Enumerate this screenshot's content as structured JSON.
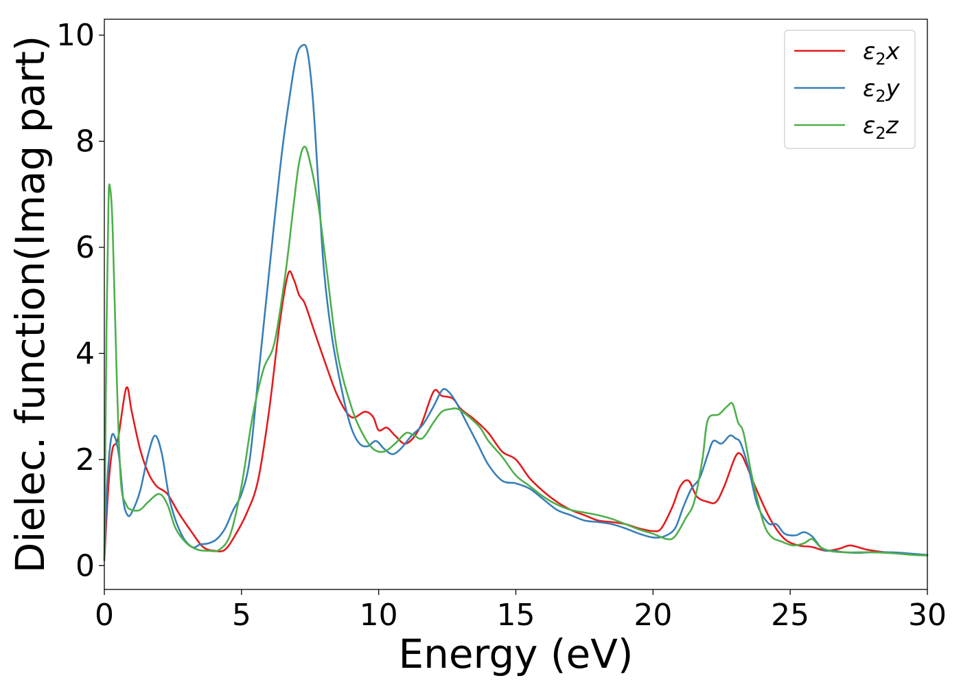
{
  "chart_data": {
    "type": "line",
    "title": "",
    "xlabel": "Energy (eV)",
    "ylabel": "Dielec. function(Imag part)",
    "xlim": [
      0,
      30
    ],
    "ylim": [
      -0.45,
      10.3
    ],
    "xticks": [
      0,
      5,
      10,
      15,
      20,
      25,
      30
    ],
    "yticks": [
      0,
      2,
      4,
      6,
      8,
      10
    ],
    "grid": false,
    "legend_position": "top-right",
    "series": [
      {
        "name": "ε₂x",
        "legend_base": "ε",
        "legend_sub": "2",
        "legend_suffix": "x",
        "color": "#e41a1c",
        "x": [
          0,
          0.15,
          0.3,
          0.5,
          0.8,
          1.0,
          1.3,
          1.6,
          1.9,
          2.3,
          2.7,
          3.2,
          3.6,
          4.0,
          4.4,
          4.8,
          5.2,
          5.6,
          6.0,
          6.4,
          6.7,
          6.9,
          7.1,
          7.3,
          7.6,
          8.0,
          8.5,
          9.0,
          9.5,
          9.8,
          10.0,
          10.3,
          10.6,
          11.0,
          11.5,
          12.0,
          12.3,
          12.7,
          13.0,
          13.5,
          14.0,
          14.5,
          15.0,
          15.5,
          16.0,
          16.5,
          17.0,
          17.5,
          18.0,
          18.5,
          19.0,
          19.5,
          20.0,
          20.3,
          20.7,
          21.0,
          21.3,
          21.6,
          22.0,
          22.3,
          22.6,
          23.0,
          23.2,
          23.4,
          23.8,
          24.3,
          24.8,
          25.3,
          25.8,
          26.3,
          26.8,
          27.2,
          27.8,
          28.5,
          29.2,
          30.0
        ],
        "values": [
          0.1,
          1.5,
          2.2,
          2.4,
          3.35,
          2.9,
          2.2,
          1.75,
          1.5,
          1.35,
          1.0,
          0.62,
          0.35,
          0.28,
          0.3,
          0.6,
          1.0,
          1.6,
          2.9,
          4.6,
          5.5,
          5.4,
          5.1,
          4.95,
          4.5,
          3.9,
          3.2,
          2.8,
          2.9,
          2.8,
          2.55,
          2.6,
          2.45,
          2.3,
          2.6,
          3.28,
          3.2,
          3.15,
          2.95,
          2.75,
          2.5,
          2.15,
          2.0,
          1.65,
          1.4,
          1.2,
          1.05,
          0.95,
          0.85,
          0.82,
          0.78,
          0.7,
          0.65,
          0.7,
          1.1,
          1.5,
          1.6,
          1.3,
          1.2,
          1.2,
          1.5,
          2.05,
          2.1,
          1.9,
          1.4,
          0.85,
          0.5,
          0.38,
          0.35,
          0.28,
          0.32,
          0.38,
          0.3,
          0.25,
          0.22,
          0.2
        ]
      },
      {
        "name": "ε₂y",
        "legend_base": "ε",
        "legend_sub": "2",
        "legend_suffix": "y",
        "color": "#377eb8",
        "x": [
          0,
          0.1,
          0.25,
          0.4,
          0.55,
          0.7,
          0.85,
          1.0,
          1.3,
          1.6,
          1.85,
          2.1,
          2.4,
          2.8,
          3.2,
          3.5,
          3.8,
          4.1,
          4.4,
          4.7,
          5.0,
          5.3,
          5.6,
          5.9,
          6.2,
          6.5,
          6.8,
          7.0,
          7.2,
          7.4,
          7.6,
          7.8,
          8.0,
          8.3,
          8.7,
          9.0,
          9.3,
          9.6,
          9.9,
          10.2,
          10.5,
          10.8,
          11.2,
          11.6,
          12.0,
          12.3,
          12.5,
          12.8,
          13.2,
          13.6,
          14.0,
          14.5,
          15.0,
          15.5,
          16.0,
          16.5,
          17.0,
          17.5,
          18.0,
          18.5,
          19.0,
          19.5,
          20.0,
          20.4,
          20.8,
          21.1,
          21.4,
          21.7,
          22.0,
          22.2,
          22.5,
          22.8,
          23.0,
          23.2,
          23.5,
          23.8,
          24.2,
          24.5,
          24.8,
          25.2,
          25.5,
          25.8,
          26.2,
          26.6,
          27.0,
          27.5,
          28.0,
          28.7,
          29.3,
          30.0
        ],
        "values": [
          0.1,
          1.5,
          2.4,
          2.4,
          2.0,
          1.2,
          0.95,
          1.0,
          1.4,
          2.1,
          2.45,
          2.1,
          1.2,
          0.6,
          0.35,
          0.4,
          0.42,
          0.5,
          0.7,
          1.05,
          1.35,
          2.0,
          3.5,
          5.0,
          6.5,
          7.9,
          9.0,
          9.6,
          9.8,
          9.7,
          8.8,
          7.2,
          5.6,
          4.3,
          3.2,
          2.6,
          2.3,
          2.25,
          2.35,
          2.2,
          2.1,
          2.2,
          2.45,
          2.65,
          3.0,
          3.3,
          3.3,
          3.1,
          2.7,
          2.3,
          1.9,
          1.6,
          1.55,
          1.45,
          1.25,
          1.05,
          0.95,
          0.85,
          0.82,
          0.78,
          0.7,
          0.6,
          0.53,
          0.55,
          0.7,
          1.1,
          1.45,
          1.65,
          2.1,
          2.35,
          2.3,
          2.45,
          2.4,
          2.3,
          1.8,
          1.15,
          0.8,
          0.78,
          0.6,
          0.57,
          0.63,
          0.55,
          0.3,
          0.28,
          0.25,
          0.24,
          0.25,
          0.25,
          0.23,
          0.2
        ]
      },
      {
        "name": "ε₂z",
        "legend_base": "ε",
        "legend_sub": "2",
        "legend_suffix": "z",
        "color": "#4daf4a",
        "x": [
          0,
          0.08,
          0.15,
          0.2,
          0.3,
          0.45,
          0.6,
          0.8,
          1.0,
          1.3,
          1.6,
          2.0,
          2.3,
          2.6,
          3.0,
          3.4,
          3.8,
          4.2,
          4.6,
          5.0,
          5.4,
          5.8,
          6.2,
          6.6,
          6.9,
          7.1,
          7.3,
          7.5,
          7.8,
          8.1,
          8.5,
          9.0,
          9.4,
          9.8,
          10.2,
          10.6,
          11.0,
          11.3,
          11.6,
          12.0,
          12.3,
          12.6,
          12.9,
          13.3,
          13.7,
          14.0,
          14.5,
          15.0,
          15.5,
          16.0,
          16.5,
          17.0,
          17.5,
          18.0,
          18.5,
          19.0,
          19.5,
          20.0,
          20.5,
          20.8,
          21.2,
          21.5,
          21.8,
          22.0,
          22.4,
          22.7,
          22.9,
          23.1,
          23.3,
          23.6,
          24.0,
          24.3,
          24.7,
          25.1,
          25.5,
          25.8,
          26.1,
          26.5,
          27.0,
          27.5,
          28.0,
          28.8,
          29.5,
          30.0
        ],
        "values": [
          0.1,
          4.5,
          6.8,
          7.15,
          6.4,
          3.6,
          1.6,
          1.15,
          1.05,
          1.05,
          1.2,
          1.35,
          1.15,
          0.7,
          0.42,
          0.3,
          0.28,
          0.3,
          0.6,
          1.5,
          2.8,
          3.7,
          4.2,
          5.5,
          6.8,
          7.6,
          7.9,
          7.6,
          6.8,
          5.6,
          4.0,
          3.0,
          2.5,
          2.2,
          2.15,
          2.3,
          2.5,
          2.45,
          2.4,
          2.7,
          2.9,
          2.95,
          2.95,
          2.8,
          2.6,
          2.35,
          2.05,
          1.7,
          1.5,
          1.3,
          1.15,
          1.05,
          1.0,
          0.95,
          0.88,
          0.78,
          0.68,
          0.6,
          0.5,
          0.55,
          0.9,
          1.2,
          2.0,
          2.75,
          2.85,
          3.0,
          3.05,
          2.7,
          2.5,
          1.7,
          0.85,
          0.55,
          0.45,
          0.38,
          0.42,
          0.5,
          0.35,
          0.27,
          0.25,
          0.25,
          0.25,
          0.23,
          0.2,
          0.19
        ]
      }
    ]
  }
}
